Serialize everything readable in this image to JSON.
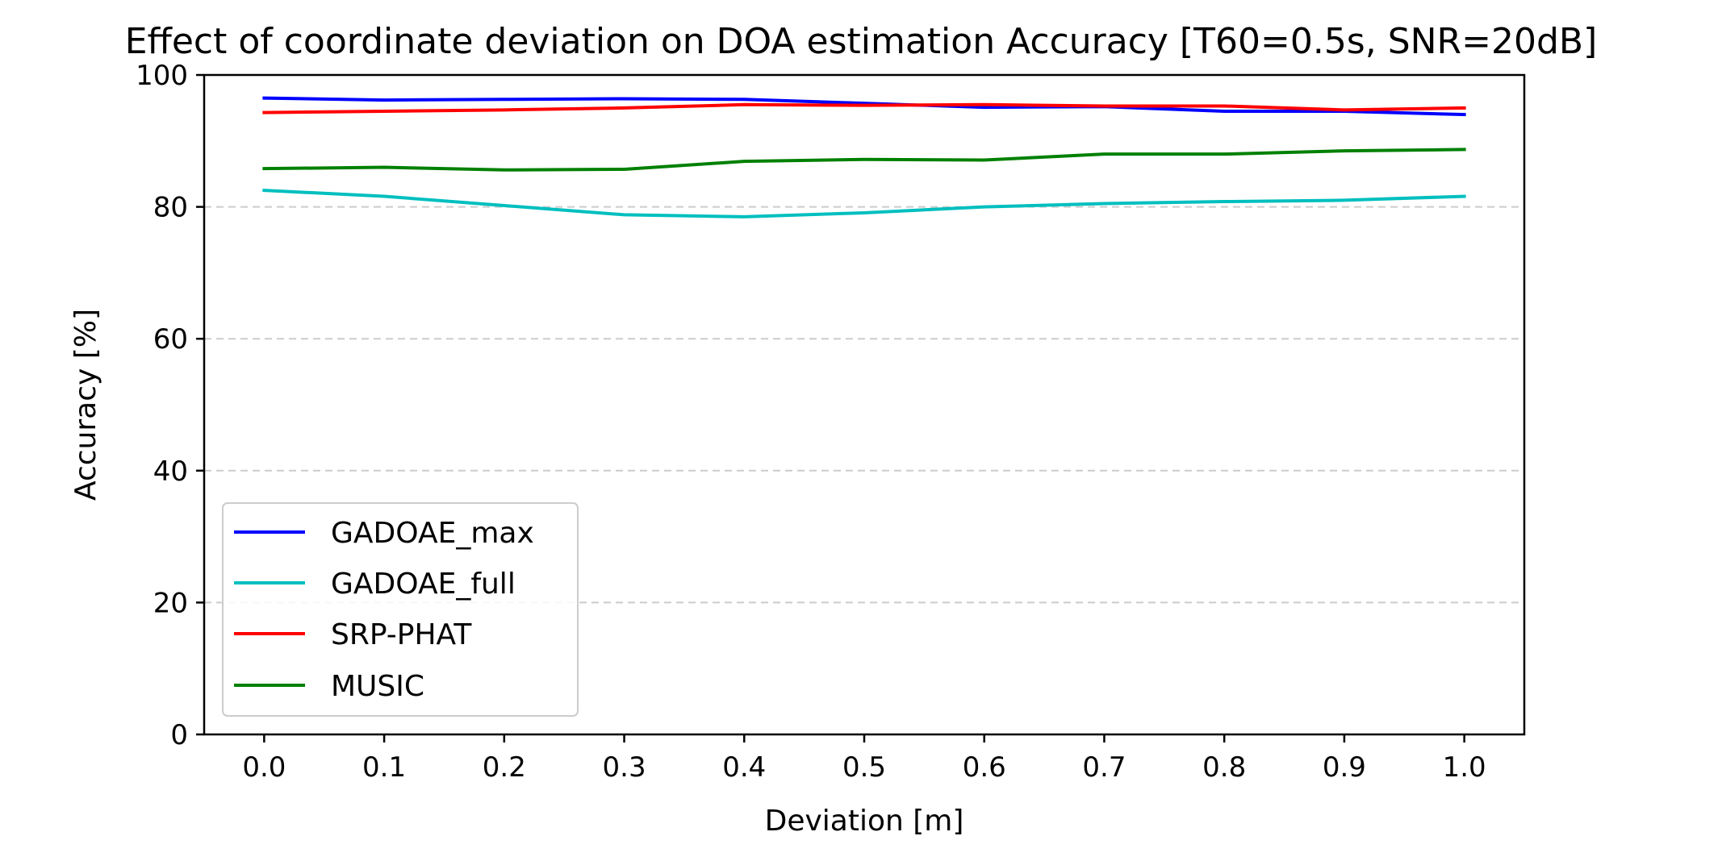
{
  "chart_data": {
    "type": "line",
    "title": "Effect of coordinate deviation on DOA estimation Accuracy [T60=0.5s, SNR=20dB]",
    "xlabel": "Deviation [m]",
    "ylabel": "Accuracy [%]",
    "x": [
      0.0,
      0.1,
      0.2,
      0.3,
      0.4,
      0.5,
      0.6,
      0.7,
      0.8,
      0.9,
      1.0
    ],
    "x_tick_labels": [
      "0.0",
      "0.1",
      "0.2",
      "0.3",
      "0.4",
      "0.5",
      "0.6",
      "0.7",
      "0.8",
      "0.9",
      "1.0"
    ],
    "y_ticks": [
      0,
      20,
      40,
      60,
      80,
      100
    ],
    "y_tick_labels": [
      "0",
      "20",
      "40",
      "60",
      "80",
      "100"
    ],
    "xlim": [
      -0.05,
      1.05
    ],
    "ylim": [
      0,
      100
    ],
    "grid": "horizontal dashed",
    "legend_position": "lower-left",
    "series": [
      {
        "name": "GADOAE_max",
        "color": "#0000ff",
        "values": [
          96.5,
          96.2,
          96.3,
          96.4,
          96.3,
          95.7,
          95.1,
          95.2,
          94.5,
          94.5,
          94.0
        ]
      },
      {
        "name": "GADOAE_full",
        "color": "#00bfbf",
        "values": [
          82.5,
          81.6,
          80.2,
          78.8,
          78.5,
          79.1,
          80.0,
          80.5,
          80.8,
          81.0,
          81.6
        ]
      },
      {
        "name": "SRP-PHAT",
        "color": "#ff0000",
        "values": [
          94.3,
          94.5,
          94.7,
          95.0,
          95.5,
          95.4,
          95.5,
          95.3,
          95.3,
          94.7,
          95.0
        ]
      },
      {
        "name": "MUSIC",
        "color": "#008000",
        "values": [
          85.8,
          86.0,
          85.6,
          85.7,
          86.9,
          87.2,
          87.1,
          88.0,
          88.0,
          88.5,
          88.7
        ]
      }
    ]
  }
}
